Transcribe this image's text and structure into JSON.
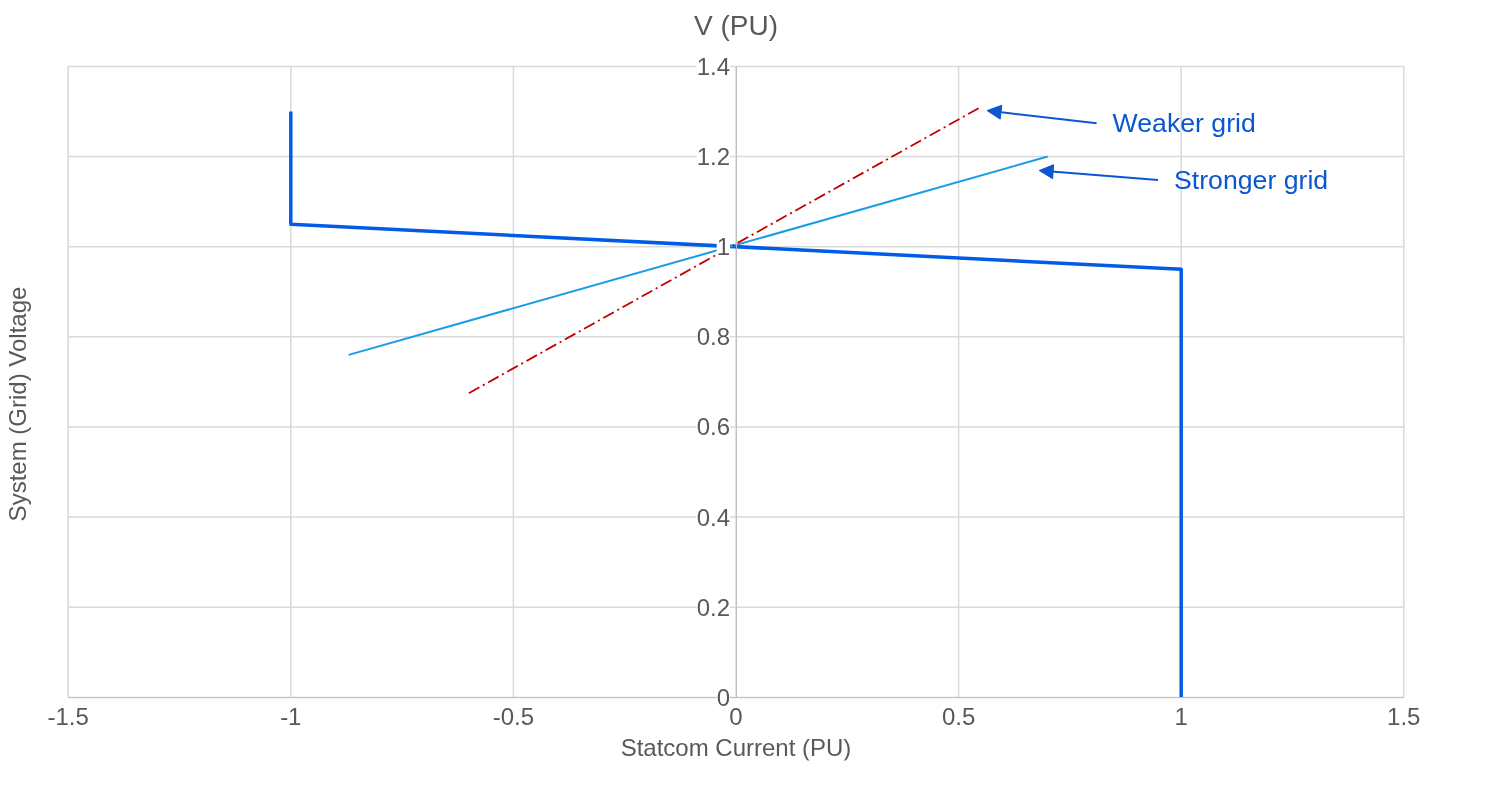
{
  "chart_data": {
    "type": "line",
    "title": "V (PU)",
    "xlabel": "Statcom Current (PU)",
    "ylabel": "System (Grid) Voltage",
    "xlim": [
      -1.5,
      1.5
    ],
    "xticks": [
      -1.5,
      -1,
      -0.5,
      0,
      0.5,
      1,
      1.5
    ],
    "ylim": [
      0,
      1.4
    ],
    "yticks": [
      0,
      0.2,
      0.4,
      0.6,
      0.8,
      1,
      1.2,
      1.4
    ],
    "grid": true,
    "marker": "none",
    "series": [
      {
        "color": "#005ce6",
        "x": [
          -1,
          -1,
          1,
          1
        ],
        "values": [
          1.3,
          1.05,
          0.95,
          0
        ],
        "line_style": "solid"
      },
      {
        "color": "#1a9be6",
        "x": [
          -0.87,
          0.7
        ],
        "values": [
          0.76,
          1.2
        ],
        "line_style": "solid"
      },
      {
        "color": "#c00000",
        "x": [
          -0.6,
          0.55
        ],
        "values": [
          0.675,
          1.31
        ],
        "line_style": "dashed"
      }
    ],
    "annotations": [
      "Weaker grid",
      "Stronger grid"
    ]
  }
}
